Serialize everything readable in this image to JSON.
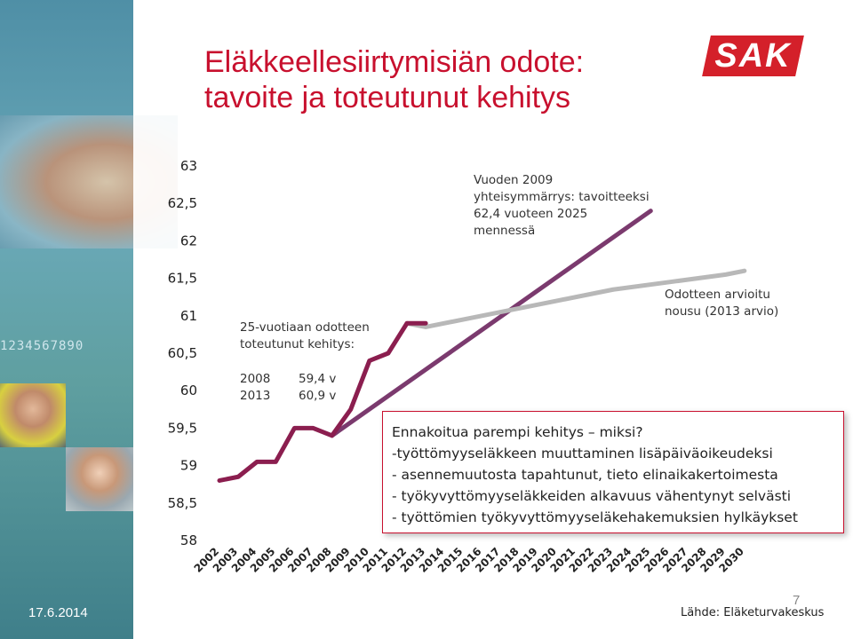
{
  "title": {
    "line1": "Eläkkeellesiirtymisiän odote:",
    "line2": "tavoite ja toteutunut kehitys"
  },
  "logo_text": "SAK",
  "decor_digits": "1234567890",
  "colors": {
    "title": "#c8102e",
    "actual": "#8b1e4f",
    "target": "#7b3a6e",
    "forecast": "#b8b8b8",
    "logo": "#d4202a"
  },
  "annotations": {
    "target_note": [
      "Vuoden 2009",
      "yhteisymmärrys: tavoitteeksi",
      "62,4 vuoteen 2025",
      "mennessä"
    ],
    "forecast_note": [
      "Odotteen arvioitu",
      "nousu (2013 arvio)"
    ],
    "realized_title": [
      "25-vuotiaan odotteen",
      "toteutunut kehitys:"
    ],
    "realized_rows": [
      {
        "year": "2008",
        "value": "59,4 v"
      },
      {
        "year": "2013",
        "value": "60,9 v"
      }
    ]
  },
  "textbox": {
    "lines": [
      "Ennakoitua parempi kehitys – miksi?",
      "-työttömyyseläkkeen muuttaminen lisäpäiväoikeudeksi",
      "- asennemuutosta tapahtunut, tieto elinaikakertoimesta",
      "- työkyvyttömyyseläkkeiden alkavuus vähentynyt selvästi",
      "- työttömien työkyvyttömyyseläkehakemuksien hylkäykset"
    ]
  },
  "footer": {
    "date": "17.6.2014",
    "page": "7",
    "source": "Lähde: Eläketurvakeskus"
  },
  "chart_data": {
    "type": "line",
    "ylim": [
      58,
      63
    ],
    "yticks": [
      "58",
      "58,5",
      "59",
      "59,5",
      "60",
      "60,5",
      "61",
      "61,5",
      "62",
      "62,5",
      "63"
    ],
    "ytick_values": [
      58,
      58.5,
      59,
      59.5,
      60,
      60.5,
      61,
      61.5,
      62,
      62.5,
      63
    ],
    "categories": [
      "2002",
      "2003",
      "2004",
      "2005",
      "2006",
      "2007",
      "2008",
      "2009",
      "2010",
      "2011",
      "2012",
      "2013",
      "2014",
      "2015",
      "2016",
      "2017",
      "2018",
      "2019",
      "2020",
      "2021",
      "2022",
      "2023",
      "2024",
      "2025",
      "2026",
      "2027",
      "2028",
      "2029",
      "2030"
    ],
    "series": [
      {
        "key": "actual",
        "x": [
          "2002",
          "2003",
          "2004",
          "2005",
          "2006",
          "2007",
          "2008",
          "2009",
          "2010",
          "2011",
          "2012",
          "2013"
        ],
        "values": [
          58.8,
          58.85,
          59.05,
          59.05,
          59.5,
          59.5,
          59.4,
          59.75,
          60.4,
          60.5,
          60.9,
          60.9
        ]
      },
      {
        "key": "target",
        "x": [
          "2008",
          "2025"
        ],
        "values": [
          59.4,
          62.4
        ]
      },
      {
        "key": "forecast",
        "x": [
          "2012",
          "2013",
          "2016",
          "2017",
          "2020",
          "2023",
          "2026",
          "2029",
          "2030"
        ],
        "values": [
          60.9,
          60.85,
          61.0,
          61.05,
          61.2,
          61.35,
          61.45,
          61.55,
          61.6
        ]
      }
    ],
    "grid": false,
    "legend": "none"
  }
}
